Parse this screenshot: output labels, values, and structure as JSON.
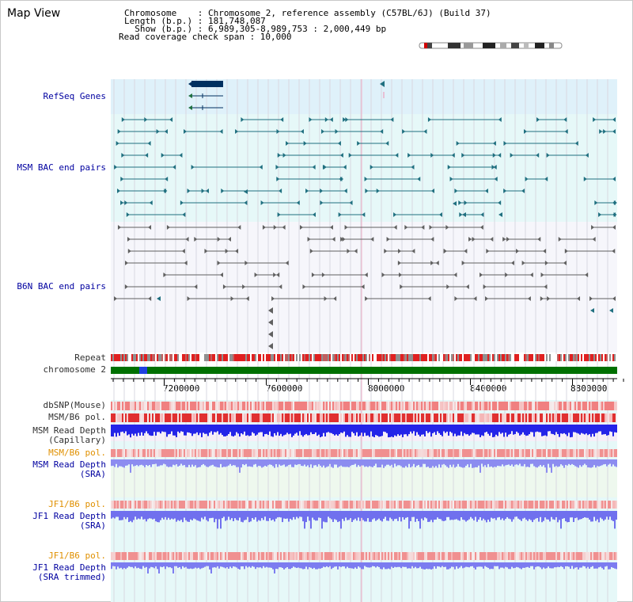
{
  "app": {
    "title": "Map View"
  },
  "header": {
    "chromosome_line": "Chromosome    : Chromosome 2, reference assembly (C57BL/6J) (Build 37)",
    "length_line": "Length (b.p.) : 181,748,087",
    "show_line": "  Show (b.p.) : 6,989,305-8,989,753 : 2,000,449 bp",
    "coverage_line": "Read coverage check span : 10,000"
  },
  "tracks": {
    "refseq": "RefSeq Genes",
    "msm_bac": "MSM BAC end pairs",
    "b6n_bac": "B6N BAC end pairs",
    "repeat": "Repeat",
    "chromosome": "chromosome 2",
    "dbsnp": "dbSNP(Mouse)",
    "msm_b6_pol_1": "MSM/B6 pol.",
    "msm_depth_cap_1": "MSM Read Depth",
    "msm_depth_cap_2": "(Capillary)",
    "msm_b6_pol_2": "MSM/B6 pol.",
    "msm_depth_sra_1": "MSM Read Depth",
    "msm_depth_sra_2": "(SRA)",
    "jf1_b6_pol_1": "JF1/B6 pol.",
    "jf1_depth_sra_1": "JF1 Read Depth",
    "jf1_depth_sra_2": "(SRA)",
    "jf1_b6_pol_2": "JF1/B6 pol.",
    "jf1_depth_trim_1": "JF1 Read Depth",
    "jf1_depth_trim_2": "(SRA trimmed)"
  },
  "axis": {
    "ticks": [
      "7200000",
      "7600000",
      "8000000",
      "8400000",
      "8800000"
    ]
  },
  "colors": {
    "refseq_bg": "#dff1fa",
    "msm_bg": "#e6f8f8",
    "b6n_bg": "#f6f6fb",
    "gene": "#003060",
    "msm_feature": "#207080",
    "b6n_feature": "#606060",
    "repeat_red": "#e02020",
    "chrom_green": "#007000",
    "depth_blue": "#2020e0",
    "depth_light": "#8080f0",
    "pol_red": "#f07070"
  }
}
